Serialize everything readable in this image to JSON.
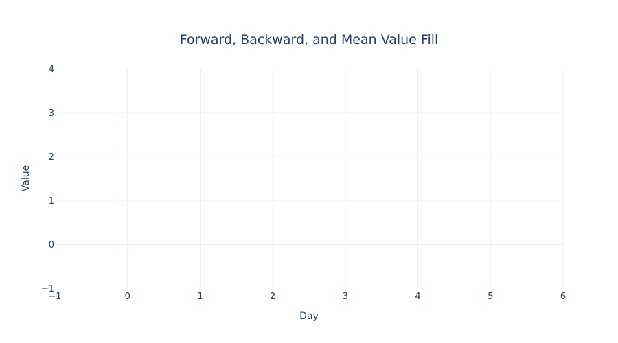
{
  "chart_data": {
    "type": "line",
    "title": "Forward, Backward, and Mean Value Fill",
    "xlabel": "Day",
    "ylabel": "Value",
    "xlim": [
      -1,
      6
    ],
    "ylim": [
      -1,
      4
    ],
    "x_ticks": [
      "−1",
      "0",
      "1",
      "2",
      "3",
      "4",
      "5",
      "6"
    ],
    "y_ticks": [
      "−1",
      "0",
      "1",
      "2",
      "3",
      "4"
    ],
    "grid": true,
    "series": [],
    "colors": {
      "text": "#2a3f5f",
      "grid": "#ebf0f8",
      "zeroline": "#EBF0F8"
    }
  }
}
